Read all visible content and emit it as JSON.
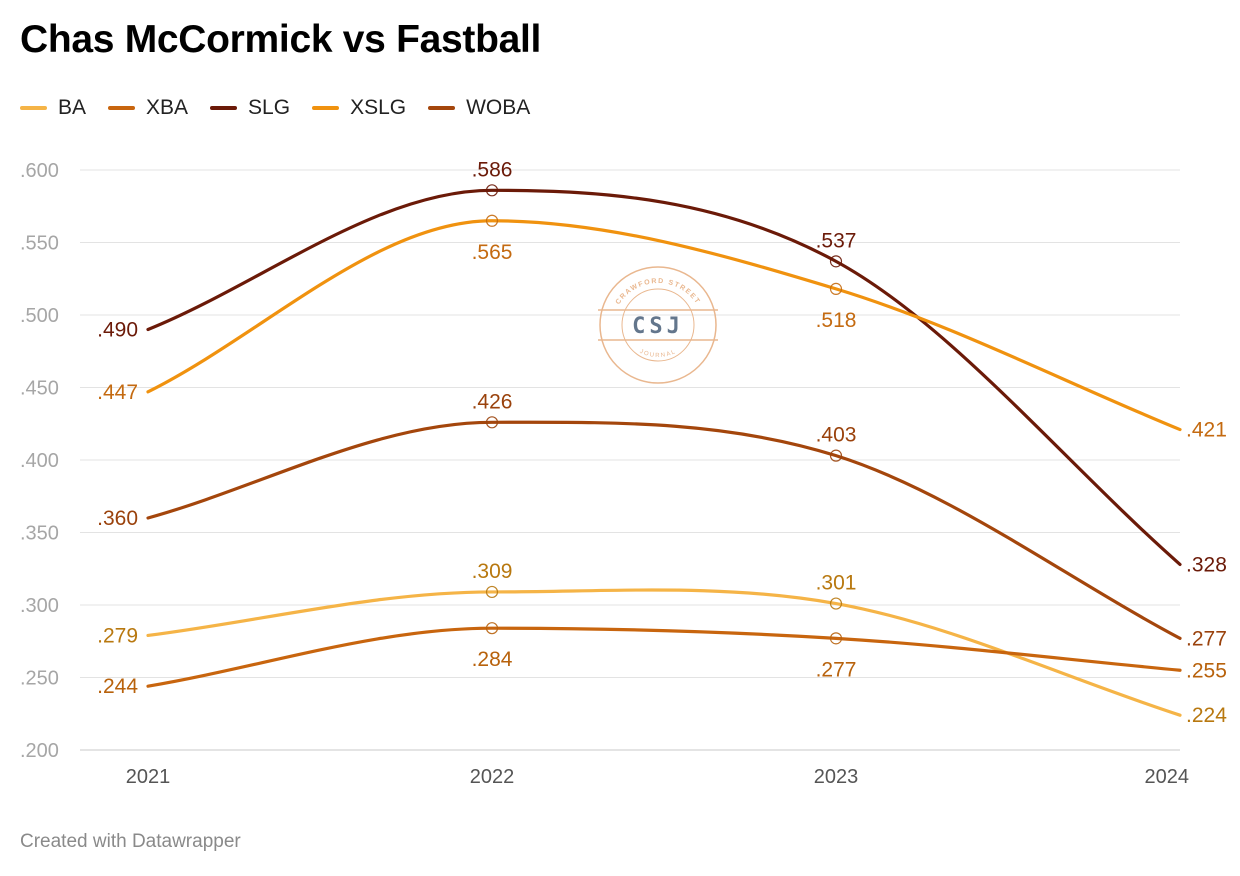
{
  "title": "Chas McCormick vs Fastball",
  "footer": "Created with Datawrapper",
  "watermark": {
    "top_text": "CRAWFORD STREET",
    "center_text": "CSJ",
    "bottom_text": "JOURNAL",
    "ring_color": "#e8b48a",
    "text_color": "#5b6f86"
  },
  "chart_data": {
    "type": "line",
    "title": "Chas McCormick vs Fastball",
    "x": [
      "2021",
      "2022",
      "2023",
      "2024"
    ],
    "y_ticks": [
      ".600",
      ".550",
      ".500",
      ".450",
      ".400",
      ".350",
      ".300",
      ".250",
      ".200"
    ],
    "ylim": [
      0.2,
      0.6
    ],
    "grid": true,
    "legend_position": "top-left",
    "series": [
      {
        "name": "BA",
        "color": "#f5b447",
        "label_color": "#b8780f",
        "values": [
          0.279,
          0.309,
          0.301,
          0.224
        ],
        "labels": [
          ".279",
          ".309",
          ".301",
          ".224"
        ],
        "label_pos": [
          "left",
          "above",
          "above",
          "right"
        ]
      },
      {
        "name": "XBA",
        "color": "#c8650e",
        "label_color": "#b8620c",
        "values": [
          0.244,
          0.284,
          0.277,
          0.255
        ],
        "labels": [
          ".244",
          ".284",
          ".277",
          ".255"
        ],
        "label_pos": [
          "left",
          "below",
          "below",
          "right"
        ]
      },
      {
        "name": "SLG",
        "color": "#6b1a08",
        "label_color": "#6b1a08",
        "values": [
          0.49,
          0.586,
          0.537,
          0.328
        ],
        "labels": [
          ".490",
          ".586",
          ".537",
          ".328"
        ],
        "label_pos": [
          "left",
          "above",
          "above",
          "right"
        ]
      },
      {
        "name": "XSLG",
        "color": "#f0920f",
        "label_color": "#c46a10",
        "values": [
          0.447,
          0.565,
          0.518,
          0.421
        ],
        "labels": [
          ".447",
          ".565",
          ".518",
          ".421"
        ],
        "label_pos": [
          "left",
          "below",
          "below",
          "right"
        ]
      },
      {
        "name": "WOBA",
        "color": "#a4460c",
        "label_color": "#9a420c",
        "values": [
          0.36,
          0.426,
          0.403,
          0.277
        ],
        "labels": [
          ".360",
          ".426",
          ".403",
          ".277"
        ],
        "label_pos": [
          "left",
          "above",
          "above",
          "right"
        ]
      }
    ]
  }
}
